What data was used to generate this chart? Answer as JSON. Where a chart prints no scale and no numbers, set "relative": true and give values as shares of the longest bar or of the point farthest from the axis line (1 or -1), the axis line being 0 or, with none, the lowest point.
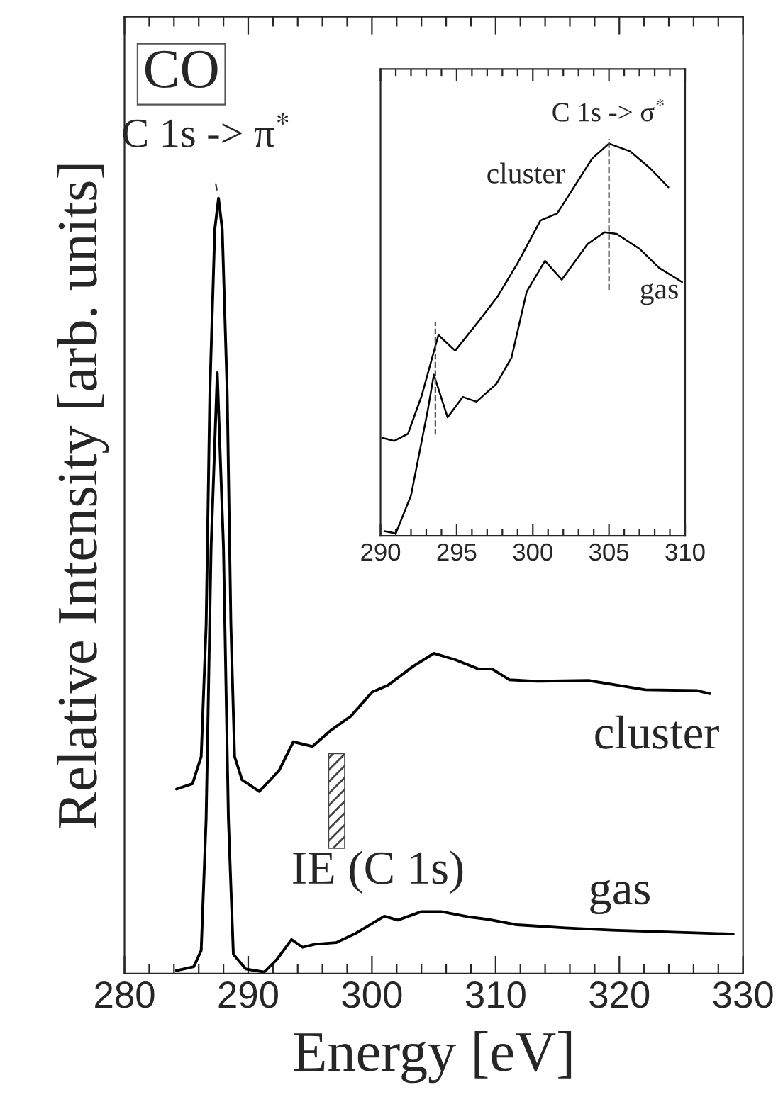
{
  "chart_data": [
    {
      "type": "line",
      "title": "CO",
      "xlabel": "Energy [eV]",
      "ylabel": "Relative Intensity [arb. units]",
      "relative": true,
      "tick_labels": "x",
      "grid": false,
      "legend": false,
      "marker": "none",
      "line_style": "solid",
      "xlim": [
        280,
        330
      ],
      "xticks": [
        280,
        {
          "value": 282,
          "label": null
        },
        {
          "value": 284,
          "label": null
        },
        {
          "value": 286,
          "label": null
        },
        {
          "value": 288,
          "label": null
        },
        290,
        {
          "value": 292,
          "label": null
        },
        {
          "value": 294,
          "label": null
        },
        {
          "value": 296,
          "label": null
        },
        {
          "value": 298,
          "label": null
        },
        300,
        {
          "value": 302,
          "label": null
        },
        {
          "value": 304,
          "label": null
        },
        {
          "value": 306,
          "label": null
        },
        {
          "value": 308,
          "label": null
        },
        310,
        {
          "value": 312,
          "label": null
        },
        {
          "value": 314,
          "label": null
        },
        {
          "value": 316,
          "label": null
        },
        {
          "value": 318,
          "label": null
        },
        320,
        {
          "value": 322,
          "label": null
        },
        {
          "value": 324,
          "label": null
        },
        {
          "value": 326,
          "label": null
        },
        {
          "value": 328,
          "label": null
        },
        330
      ],
      "series": [
        {
          "name": "cluster",
          "color": "#000000",
          "x": [
            284.2,
            285.5,
            286.2,
            286.6,
            286.9,
            287.3,
            287.6,
            287.9,
            288.3,
            288.6,
            288.9,
            289.5,
            290.9,
            292.5,
            293.65,
            295.2,
            296.7,
            298.3,
            300.0,
            301.3,
            303.3,
            305.0,
            306.7,
            308.6,
            309.7,
            311.1,
            313.3,
            317.5,
            322.1,
            326.3,
            327.3
          ],
          "values": [
            0.238,
            0.245,
            0.28,
            0.45,
            0.75,
            0.96,
            1.0,
            0.96,
            0.75,
            0.45,
            0.28,
            0.25,
            0.235,
            0.262,
            0.299,
            0.293,
            0.314,
            0.332,
            0.363,
            0.372,
            0.396,
            0.413,
            0.405,
            0.393,
            0.393,
            0.379,
            0.377,
            0.378,
            0.366,
            0.365,
            0.361
          ]
        },
        {
          "name": "gas",
          "color": "#000000",
          "x": [
            284.2,
            285.6,
            286.2,
            286.6,
            287.0,
            287.5,
            288.0,
            288.4,
            288.8,
            289.8,
            291.3,
            292.3,
            293.5,
            294.4,
            295.4,
            297.1,
            298.7,
            301.0,
            302.1,
            304.0,
            305.6,
            307.9,
            309.4,
            311.7,
            315.6,
            319.4,
            325.2,
            329.2
          ],
          "values": [
            0.004,
            0.009,
            0.03,
            0.2,
            0.55,
            0.775,
            0.55,
            0.2,
            0.025,
            0.006,
            0.002,
            0.018,
            0.044,
            0.034,
            0.038,
            0.04,
            0.052,
            0.074,
            0.069,
            0.08,
            0.08,
            0.073,
            0.07,
            0.063,
            0.059,
            0.056,
            0.053,
            0.051
          ]
        }
      ],
      "annotations": [
        {
          "text": "C 1s -> π$^{*}$",
          "x": 287.6,
          "y": 1.0
        }
      ],
      "bands": [
        {
          "axis": "x",
          "from": 296.5,
          "to": 297.8,
          "label": "IE (C 1s)"
        }
      ]
    },
    {
      "type": "line",
      "relative": true,
      "tick_labels": "x",
      "grid": false,
      "legend": false,
      "marker": "none",
      "line_style": "solid",
      "xlim": [
        290,
        310
      ],
      "xticks": [
        290,
        {
          "value": 291,
          "label": null
        },
        {
          "value": 292,
          "label": null
        },
        {
          "value": 293,
          "label": null
        },
        {
          "value": 294,
          "label": null
        },
        295,
        {
          "value": 296,
          "label": null
        },
        {
          "value": 297,
          "label": null
        },
        {
          "value": 298,
          "label": null
        },
        {
          "value": 299,
          "label": null
        },
        300,
        {
          "value": 301,
          "label": null
        },
        {
          "value": 302,
          "label": null
        },
        {
          "value": 303,
          "label": null
        },
        {
          "value": 304,
          "label": null
        },
        305,
        {
          "value": 306,
          "label": null
        },
        {
          "value": 307,
          "label": null
        },
        {
          "value": 308,
          "label": null
        },
        {
          "value": 309,
          "label": null
        },
        310
      ],
      "series": [
        {
          "name": "cluster",
          "color": "#000000",
          "x": [
            290.1,
            290.9,
            291.8,
            292.7,
            293.8,
            294.9,
            296.5,
            297.7,
            299.0,
            300.5,
            301.6,
            302.7,
            303.9,
            305.0,
            306.4,
            307.7,
            308.9
          ],
          "values": [
            0.25,
            0.242,
            0.26,
            0.357,
            0.512,
            0.472,
            0.55,
            0.611,
            0.695,
            0.804,
            0.822,
            0.889,
            0.962,
            1.0,
            0.98,
            0.937,
            0.889
          ]
        },
        {
          "name": "gas",
          "color": "#000000",
          "x": [
            290.25,
            291.0,
            292.0,
            293.1,
            293.5,
            294.4,
            295.4,
            296.3,
            297.6,
            298.6,
            299.6,
            300.8,
            301.9,
            303.6,
            304.7,
            305.5,
            307.0,
            308.3,
            309.8
          ],
          "values": [
            0.012,
            0.006,
            0.103,
            0.32,
            0.411,
            0.302,
            0.354,
            0.342,
            0.387,
            0.454,
            0.623,
            0.701,
            0.653,
            0.744,
            0.774,
            0.77,
            0.732,
            0.683,
            0.647
          ]
        }
      ],
      "ref_lines": [
        {
          "axis": "x",
          "value": 305,
          "label": "C 1s -> σ$^{*}$",
          "line_style": "dashed"
        },
        {
          "axis": "x",
          "value": 293.6,
          "line_style": "dashed"
        }
      ]
    }
  ]
}
